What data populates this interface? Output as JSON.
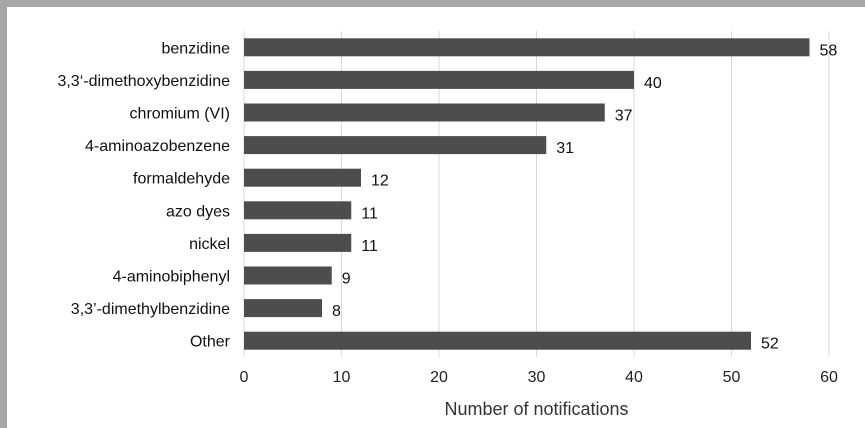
{
  "chart_data": {
    "type": "bar",
    "orientation": "horizontal",
    "categories": [
      "benzidine",
      "3,3‘-dimethoxybenzidine",
      "chromium (VI)",
      "4-aminoazobenzene",
      "formaldehyde",
      "azo dyes",
      "nickel",
      "4-aminobiphenyl",
      "3,3’-dimethylbenzidine",
      "Other"
    ],
    "values": [
      58,
      40,
      37,
      31,
      12,
      11,
      11,
      9,
      8,
      52
    ],
    "xlabel": "Number of notifications",
    "ylabel": "",
    "title": "",
    "xlim": [
      0,
      60
    ],
    "xticks": [
      0,
      10,
      20,
      30,
      40,
      50,
      60
    ],
    "grid": true,
    "bar_color": "#4d4d4d",
    "grid_color": "#d9d9d9",
    "frame_color": "#a6a6a6"
  }
}
